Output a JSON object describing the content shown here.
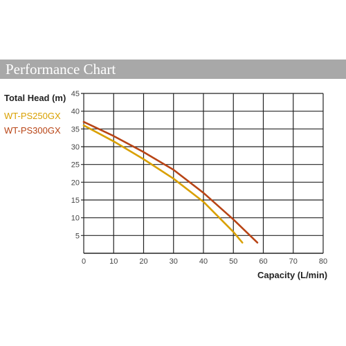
{
  "banner": {
    "title": "Performance Chart"
  },
  "chart_data": {
    "type": "line",
    "ylabel": "Total Head (m)",
    "xlabel": "Capacity (L/min)",
    "xlim": [
      0,
      80
    ],
    "ylim": [
      0,
      45
    ],
    "xticks": [
      0,
      10,
      20,
      30,
      40,
      50,
      60,
      70,
      80
    ],
    "yticks": [
      5,
      10,
      15,
      20,
      25,
      30,
      35,
      40,
      45
    ],
    "grid": true,
    "legend": "top-left",
    "series": [
      {
        "name": "WT-PS250GX",
        "color": "#d9a000",
        "x": [
          0,
          10,
          20,
          30,
          40,
          50,
          53
        ],
        "y": [
          36,
          31.5,
          26.5,
          21,
          14.5,
          6,
          3
        ]
      },
      {
        "name": "WT-PS300GX",
        "color": "#b84415",
        "x": [
          0,
          10,
          20,
          30,
          40,
          50,
          58
        ],
        "y": [
          37,
          33,
          28.5,
          23.5,
          17,
          9.5,
          3
        ]
      }
    ]
  }
}
